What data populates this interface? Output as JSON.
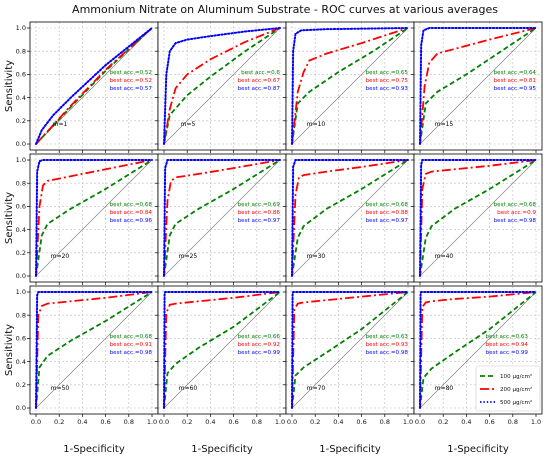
{
  "title": "Ammonium Nitrate on Aluminum Substrate - ROC curves at various averages",
  "colors": {
    "c100": "#008000",
    "c200": "#ff0000",
    "c500": "#0000ff",
    "chance": "#808080"
  },
  "chart_data": {
    "type": "line",
    "xlabel": "1-Specificity",
    "ylabel": "Sensitivity",
    "xlim": [
      0,
      1
    ],
    "ylim": [
      0,
      1
    ],
    "xticks": [
      "0.0",
      "0.2",
      "0.4",
      "0.6",
      "0.8",
      "1.0"
    ],
    "yticks": [
      "0.0",
      "0.2",
      "0.4",
      "0.6",
      "0.8",
      "1.0"
    ],
    "grid": true,
    "legend": {
      "placement": "lower-right, bottom-right panel",
      "entries": [
        {
          "key": "c100",
          "label": "100 μg/cm²"
        },
        {
          "key": "c200",
          "label": "200 μg/cm²"
        },
        {
          "key": "c500",
          "label": "500 μg/cm²"
        }
      ]
    },
    "panels": [
      {
        "m": "m=1",
        "acc": [
          "best acc.=0.52",
          "best acc.=0.52",
          "best acc.=0.57"
        ],
        "series": [
          {
            "key": "c100",
            "x": [
              0,
              0.3,
              0.6,
              1
            ],
            "y": [
              0,
              0.32,
              0.63,
              1
            ]
          },
          {
            "key": "c200",
            "x": [
              0,
              0.3,
              0.6,
              1
            ],
            "y": [
              0,
              0.33,
              0.64,
              1
            ]
          },
          {
            "key": "c500",
            "x": [
              0,
              0.05,
              0.15,
              0.3,
              0.6,
              1
            ],
            "y": [
              0,
              0.12,
              0.25,
              0.4,
              0.68,
              1
            ]
          }
        ]
      },
      {
        "m": "m=5",
        "acc": [
          "best acc.=0.6",
          "best acc.=0.67",
          "best acc.=0.87"
        ],
        "series": [
          {
            "key": "c100",
            "x": [
              0,
              0.05,
              0.2,
              0.4,
              0.7,
              1
            ],
            "y": [
              0,
              0.25,
              0.42,
              0.58,
              0.8,
              1
            ]
          },
          {
            "key": "c200",
            "x": [
              0,
              0.05,
              0.1,
              0.2,
              0.4,
              0.7,
              1
            ],
            "y": [
              0,
              0.3,
              0.48,
              0.6,
              0.73,
              0.88,
              1
            ]
          },
          {
            "key": "c500",
            "x": [
              0,
              0.02,
              0.05,
              0.1,
              0.2,
              0.4,
              0.7,
              1
            ],
            "y": [
              0,
              0.6,
              0.8,
              0.87,
              0.9,
              0.93,
              0.97,
              1
            ]
          }
        ]
      },
      {
        "m": "m=10",
        "acc": [
          "best acc.=0.65",
          "best acc.=0.75",
          "best acc.=0.93"
        ],
        "series": [
          {
            "key": "c100",
            "x": [
              0,
              0.05,
              0.15,
              0.4,
              0.7,
              1
            ],
            "y": [
              0,
              0.35,
              0.45,
              0.62,
              0.8,
              1
            ]
          },
          {
            "key": "c200",
            "x": [
              0,
              0.05,
              0.1,
              0.15,
              0.3,
              0.6,
              1
            ],
            "y": [
              0,
              0.45,
              0.62,
              0.72,
              0.78,
              0.87,
              1
            ]
          },
          {
            "key": "c500",
            "x": [
              0,
              0.01,
              0.03,
              0.08,
              0.3,
              1
            ],
            "y": [
              0,
              0.8,
              0.95,
              0.98,
              0.99,
              1
            ]
          }
        ]
      },
      {
        "m": "m=15",
        "acc": [
          "best acc.=0.64",
          "best acc.=0.81",
          "best acc.=0.95"
        ],
        "series": [
          {
            "key": "c100",
            "x": [
              0,
              0.05,
              0.15,
              0.4,
              0.7,
              1
            ],
            "y": [
              0,
              0.35,
              0.45,
              0.6,
              0.8,
              1
            ]
          },
          {
            "key": "c200",
            "x": [
              0,
              0.04,
              0.08,
              0.15,
              0.3,
              0.6,
              1
            ],
            "y": [
              0,
              0.5,
              0.7,
              0.78,
              0.82,
              0.9,
              1
            ]
          },
          {
            "key": "c500",
            "x": [
              0,
              0.01,
              0.03,
              0.08,
              1
            ],
            "y": [
              0,
              0.85,
              0.98,
              1,
              1
            ]
          }
        ]
      },
      {
        "m": "m=20",
        "acc": [
          "best acc.=0.68",
          "best acc.=0.84",
          "best acc.=0.96"
        ],
        "series": [
          {
            "key": "c100",
            "x": [
              0,
              0.05,
              0.1,
              0.3,
              0.6,
              1
            ],
            "y": [
              0,
              0.35,
              0.45,
              0.58,
              0.75,
              1
            ]
          },
          {
            "key": "c200",
            "x": [
              0,
              0.03,
              0.06,
              0.1,
              0.3,
              0.6,
              1
            ],
            "y": [
              0,
              0.6,
              0.78,
              0.82,
              0.86,
              0.92,
              1
            ]
          },
          {
            "key": "c500",
            "x": [
              0,
              0.01,
              0.03,
              0.06,
              1
            ],
            "y": [
              0,
              0.9,
              0.99,
              1,
              1
            ]
          }
        ]
      },
      {
        "m": "m=25",
        "acc": [
          "best acc.=0.69",
          "best acc.=0.86",
          "best acc.=0.97"
        ],
        "series": [
          {
            "key": "c100",
            "x": [
              0,
              0.05,
              0.1,
              0.3,
              0.6,
              1
            ],
            "y": [
              0,
              0.35,
              0.45,
              0.58,
              0.75,
              1
            ]
          },
          {
            "key": "c200",
            "x": [
              0,
              0.03,
              0.06,
              0.1,
              0.3,
              0.6,
              1
            ],
            "y": [
              0,
              0.65,
              0.82,
              0.85,
              0.88,
              0.93,
              1
            ]
          },
          {
            "key": "c500",
            "x": [
              0,
              0.01,
              0.03,
              1
            ],
            "y": [
              0,
              0.93,
              1,
              1
            ]
          }
        ]
      },
      {
        "m": "m=30",
        "acc": [
          "best acc.=0.68",
          "best acc.=0.88",
          "best acc.=0.97"
        ],
        "series": [
          {
            "key": "c100",
            "x": [
              0,
              0.05,
              0.1,
              0.3,
              0.6,
              1
            ],
            "y": [
              0,
              0.33,
              0.43,
              0.58,
              0.75,
              1
            ]
          },
          {
            "key": "c200",
            "x": [
              0,
              0.03,
              0.06,
              0.1,
              0.3,
              0.6,
              1
            ],
            "y": [
              0,
              0.7,
              0.85,
              0.87,
              0.9,
              0.94,
              1
            ]
          },
          {
            "key": "c500",
            "x": [
              0,
              0.01,
              0.03,
              1
            ],
            "y": [
              0,
              0.94,
              1,
              1
            ]
          }
        ]
      },
      {
        "m": "m=40",
        "acc": [
          "best acc.=0.68",
          "best acc.=0.9",
          "best acc.=0.98"
        ],
        "series": [
          {
            "key": "c100",
            "x": [
              0,
              0.05,
              0.1,
              0.3,
              0.6,
              1
            ],
            "y": [
              0,
              0.33,
              0.43,
              0.58,
              0.75,
              1
            ]
          },
          {
            "key": "c200",
            "x": [
              0,
              0.02,
              0.05,
              0.1,
              0.3,
              0.6,
              1
            ],
            "y": [
              0,
              0.75,
              0.88,
              0.9,
              0.92,
              0.95,
              1
            ]
          },
          {
            "key": "c500",
            "x": [
              0,
              0.01,
              0.02,
              1
            ],
            "y": [
              0,
              0.96,
              1,
              1
            ]
          }
        ]
      },
      {
        "m": "m=50",
        "acc": [
          "best acc.=0.68",
          "best acc.=0.91",
          "best acc.=0.98"
        ],
        "series": [
          {
            "key": "c100",
            "x": [
              0,
              0.03,
              0.1,
              0.3,
              0.6,
              1
            ],
            "y": [
              0,
              0.35,
              0.45,
              0.58,
              0.75,
              1
            ]
          },
          {
            "key": "c200",
            "x": [
              0,
              0.02,
              0.05,
              0.1,
              0.3,
              0.6,
              1
            ],
            "y": [
              0,
              0.8,
              0.88,
              0.9,
              0.92,
              0.95,
              1
            ]
          },
          {
            "key": "c500",
            "x": [
              0,
              0.01,
              0.02,
              1
            ],
            "y": [
              0,
              0.97,
              1,
              1
            ]
          }
        ]
      },
      {
        "m": "m=60",
        "acc": [
          "best acc.=0.66",
          "best acc.=0.92",
          "best acc.=0.99"
        ],
        "series": [
          {
            "key": "c100",
            "x": [
              0,
              0.03,
              0.1,
              0.3,
              0.6,
              1
            ],
            "y": [
              0,
              0.3,
              0.38,
              0.52,
              0.7,
              1
            ]
          },
          {
            "key": "c200",
            "x": [
              0,
              0.02,
              0.05,
              0.1,
              0.3,
              0.6,
              1
            ],
            "y": [
              0,
              0.82,
              0.89,
              0.9,
              0.92,
              0.95,
              1
            ]
          },
          {
            "key": "c500",
            "x": [
              0,
              0.005,
              0.01,
              1
            ],
            "y": [
              0,
              0.98,
              1,
              1
            ]
          }
        ]
      },
      {
        "m": "m=70",
        "acc": [
          "best acc.=0.63",
          "best acc.=0.93",
          "best acc.=0.98"
        ],
        "series": [
          {
            "key": "c100",
            "x": [
              0,
              0.03,
              0.1,
              0.3,
              0.6,
              1
            ],
            "y": [
              0,
              0.28,
              0.35,
              0.48,
              0.68,
              1
            ]
          },
          {
            "key": "c200",
            "x": [
              0,
              0.02,
              0.05,
              0.1,
              0.3,
              0.6,
              1
            ],
            "y": [
              0,
              0.85,
              0.9,
              0.91,
              0.93,
              0.96,
              1
            ]
          },
          {
            "key": "c500",
            "x": [
              0,
              0.005,
              0.01,
              1
            ],
            "y": [
              0,
              0.98,
              1,
              1
            ]
          }
        ]
      },
      {
        "m": "m=80",
        "acc": [
          "best acc.=0.63",
          "best acc.=0.94",
          "best acc.=0.99"
        ],
        "series": [
          {
            "key": "c100",
            "x": [
              0,
              0.03,
              0.1,
              0.3,
              0.6,
              1
            ],
            "y": [
              0,
              0.26,
              0.34,
              0.48,
              0.68,
              1
            ]
          },
          {
            "key": "c200",
            "x": [
              0,
              0.02,
              0.05,
              0.1,
              0.3,
              0.6,
              1
            ],
            "y": [
              0,
              0.87,
              0.91,
              0.92,
              0.94,
              0.96,
              1
            ]
          },
          {
            "key": "c500",
            "x": [
              0,
              0.005,
              0.01,
              1
            ],
            "y": [
              0,
              0.99,
              1,
              1
            ]
          }
        ]
      }
    ]
  }
}
